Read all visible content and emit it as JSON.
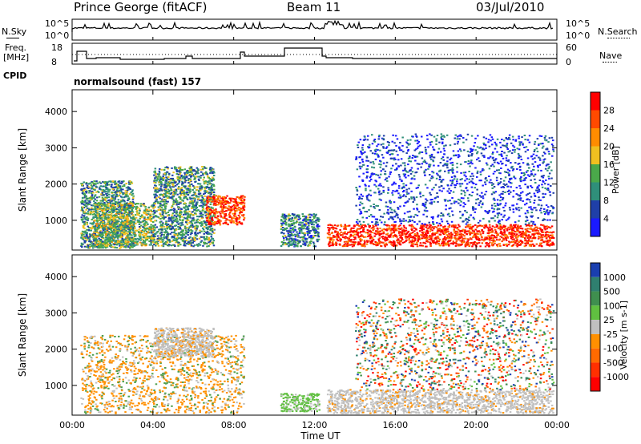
{
  "header": {
    "station": "Prince George (fitACF)",
    "beam": "Beam 11",
    "date": "03/Jul/2010"
  },
  "panel_labels": {
    "nsky": "N.Sky",
    "nsky_top": "10^5",
    "nsky_bottom": "10^0",
    "nsearch": "N.Search",
    "nsearch_top": "10^5",
    "nsearch_bottom": "10^0",
    "freq": "Freq.",
    "freq_unit": "[MHz]",
    "freq_top": "18",
    "freq_bottom": "8",
    "nave": "Nave",
    "nave_top": "60",
    "nave_bottom": "0",
    "cpid": "CPID",
    "mode": "normalsound (fast) 157"
  },
  "chart_data": [
    {
      "type": "heatmap",
      "ylabel": "Slant Range [km]",
      "xlabel": "Time UT",
      "x_ticks": [
        "00:00",
        "04:00",
        "08:00",
        "12:00",
        "16:00",
        "20:00",
        "00:00"
      ],
      "y_ticks": [
        1000,
        2000,
        3000,
        4000
      ],
      "ylim": [
        180,
        4600
      ],
      "colorbar_label": "Power [dB]",
      "colorbar_ticks": [
        "4",
        "8",
        "12",
        "16",
        "20",
        "24",
        "28"
      ],
      "colors": [
        "#1a1aff",
        "#1f3fa8",
        "#2f8f7a",
        "#4aa84a",
        "#f0c020",
        "#ff8c00",
        "#ff4a00",
        "#ff0000"
      ],
      "regions": [
        {
          "t0": 0.4,
          "t1": 3.0,
          "r0": 250,
          "r1": 2100,
          "level": 0.35
        },
        {
          "t0": 1.0,
          "t1": 4.0,
          "r0": 300,
          "r1": 1500,
          "level": 0.45
        },
        {
          "t0": 4.0,
          "t1": 7.0,
          "r0": 300,
          "r1": 2500,
          "level": 0.35
        },
        {
          "t0": 6.6,
          "t1": 8.5,
          "r0": 900,
          "r1": 1700,
          "level": 0.85
        },
        {
          "t0": 10.3,
          "t1": 12.2,
          "r0": 300,
          "r1": 1200,
          "level": 0.3
        },
        {
          "t0": 12.6,
          "t1": 23.8,
          "r0": 300,
          "r1": 900,
          "level": 0.9
        },
        {
          "t0": 14.0,
          "t1": 23.8,
          "r0": 900,
          "r1": 3400,
          "level": 0.15
        }
      ]
    },
    {
      "type": "heatmap",
      "ylabel": "Slant Range [km]",
      "xlabel": "Time UT",
      "x_ticks": [
        "00:00",
        "04:00",
        "08:00",
        "12:00",
        "16:00",
        "20:00",
        "00:00"
      ],
      "y_ticks": [
        1000,
        2000,
        3000,
        4000
      ],
      "ylim": [
        180,
        4600
      ],
      "colorbar_label": "Velocity [m s-1]",
      "colorbar_ticks": [
        "1000",
        "500",
        "100",
        "25",
        "-25",
        "-100",
        "-500",
        "-1000"
      ],
      "colors": [
        "#1a3fb0",
        "#2f7f6f",
        "#3f8f4f",
        "#60c040",
        "#c0c0c0",
        "#ff9000",
        "#ff6a00",
        "#ff3000",
        "#ff0000"
      ],
      "regions": [
        {
          "t0": 0.4,
          "t1": 8.5,
          "r0": 250,
          "r1": 2400,
          "level": "orange"
        },
        {
          "t0": 4.0,
          "t1": 7.0,
          "r0": 1800,
          "r1": 2600,
          "level": "grey"
        },
        {
          "t0": 10.3,
          "t1": 12.2,
          "r0": 300,
          "r1": 800,
          "level": "green"
        },
        {
          "t0": 12.6,
          "t1": 23.8,
          "r0": 250,
          "r1": 900,
          "level": "grey"
        },
        {
          "t0": 14.0,
          "t1": 23.8,
          "r0": 900,
          "r1": 3400,
          "level": "mixed"
        }
      ]
    }
  ]
}
